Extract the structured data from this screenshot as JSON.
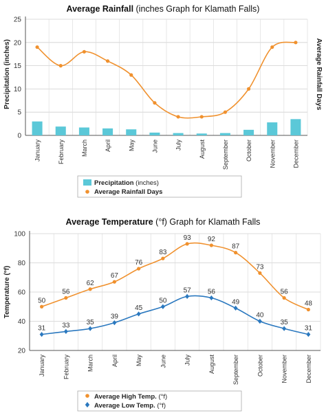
{
  "chart_data": [
    {
      "type": "bar+line",
      "title_bold": "Average Rainfall",
      "title_rest": " (inches Graph for Klamath Falls)",
      "ylabel": "Precipitation (inches)",
      "y2label": "Average Rainfall Days",
      "ylim": [
        0,
        25
      ],
      "yticks": [
        0,
        5,
        10,
        15,
        20,
        25
      ],
      "categories": [
        "January",
        "February",
        "March",
        "April",
        "May",
        "June",
        "July",
        "August",
        "September",
        "October",
        "November",
        "December"
      ],
      "series": [
        {
          "name": "Precipitation",
          "unit_suffix": " (inches)",
          "kind": "bar",
          "color": "#5bc8d8",
          "values": [
            3.0,
            1.9,
            1.7,
            1.5,
            1.3,
            0.6,
            0.5,
            0.4,
            0.5,
            1.2,
            2.8,
            3.5
          ]
        },
        {
          "name": "Average Rainfall Days",
          "kind": "line",
          "color": "#f0912e",
          "values": [
            19,
            15,
            18,
            16,
            13,
            7,
            4,
            4,
            5,
            10,
            19,
            20
          ]
        }
      ],
      "grid": true,
      "legend_position": "bottom"
    },
    {
      "type": "line",
      "title_bold": "Average Temperature",
      "title_rest": " (°f) Graph for Klamath Falls",
      "ylabel": "Temperature (°f)",
      "ylim": [
        20,
        100
      ],
      "yticks": [
        20,
        40,
        60,
        80,
        100
      ],
      "categories": [
        "January",
        "February",
        "March",
        "April",
        "May",
        "June",
        "July",
        "August",
        "September",
        "October",
        "November",
        "December"
      ],
      "series": [
        {
          "name": "Average High Temp.",
          "unit_suffix": " (°f)",
          "color": "#f0912e",
          "marker": "circle",
          "values": [
            50,
            56,
            62,
            67,
            76,
            83,
            93,
            92,
            87,
            73,
            56,
            48
          ]
        },
        {
          "name": "Average Low Temp.",
          "unit_suffix": " (°f)",
          "color": "#2a78bf",
          "marker": "diamond",
          "values": [
            31,
            33,
            35,
            39,
            45,
            50,
            57,
            56,
            49,
            40,
            35,
            31
          ]
        }
      ],
      "grid": true,
      "legend_position": "bottom"
    }
  ]
}
